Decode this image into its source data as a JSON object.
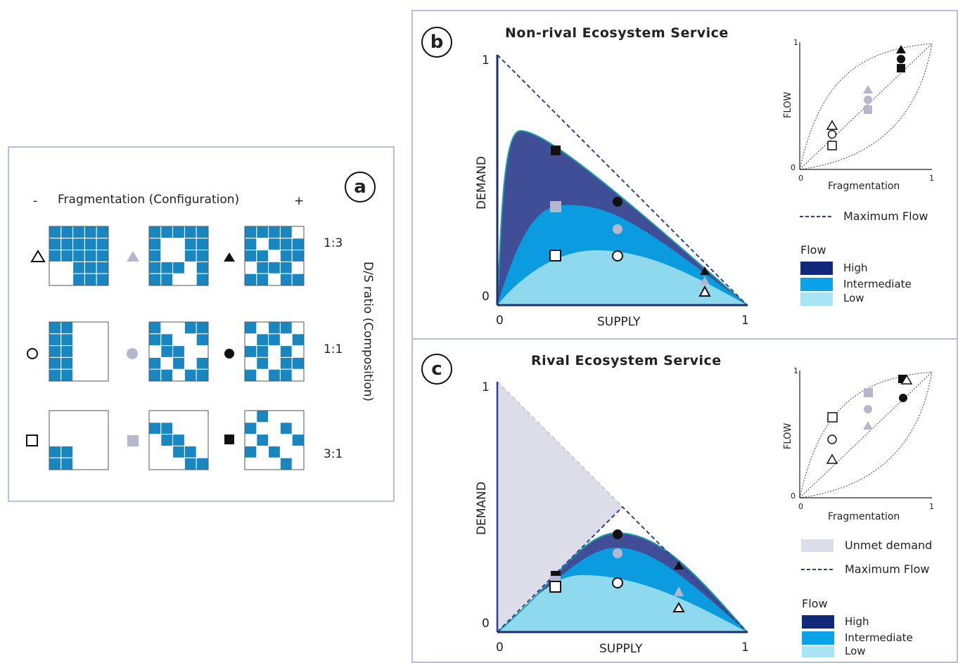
{
  "panel_a": {
    "label": "a",
    "minus": "-",
    "plus": "+",
    "header": "Fragmentation (Configuration)",
    "side_label": "D/S ratio (Composition)",
    "ratios": [
      "1:3",
      "1:1",
      "3:1"
    ]
  },
  "panel_b": {
    "label": "b",
    "title": "Non-rival Ecosystem Service",
    "ylabel": "DEMAND",
    "xlabel": "SUPPLY",
    "x0": "0",
    "x1": "1",
    "y0": "0",
    "y1": "1",
    "inset": {
      "ylabel": "FLOW",
      "xlabel": "Fragmentation",
      "x0": "0",
      "x1": "1",
      "y0": "0",
      "y1": "1"
    },
    "legend": {
      "max_flow": "Maximum Flow",
      "flow_title": "Flow",
      "high": "High",
      "intermediate": "Intermediate",
      "low": "Low"
    }
  },
  "panel_c": {
    "label": "c",
    "title": "Rival Ecosystem Service",
    "ylabel": "DEMAND",
    "xlabel": "SUPPLY",
    "x0": "0",
    "x1": "1",
    "y0": "0",
    "y1": "1",
    "inset": {
      "ylabel": "FLOW",
      "xlabel": "Fragmentation",
      "x0": "0",
      "x1": "1",
      "y0": "0",
      "y1": "1"
    },
    "legend": {
      "unmet": "Unmet demand",
      "max_flow": "Maximum Flow",
      "flow_title": "Flow",
      "high": "High",
      "intermediate": "Intermediate",
      "low": "Low"
    }
  },
  "colors": {
    "high": "#3f4e96",
    "intermediate": "#0b9ce0",
    "low": "#8fd9ee",
    "gray_marker": "#b5b8cc",
    "unmet": "#dcdde8",
    "max_flow": "#2f3f8f",
    "grid_blue": "#1a86c0"
  }
}
